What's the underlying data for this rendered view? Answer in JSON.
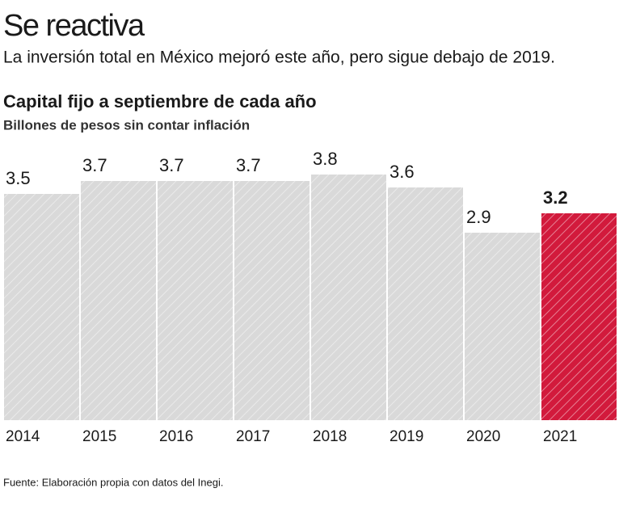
{
  "chart_data": {
    "type": "bar",
    "title": "Se reactiva",
    "subtitle": "La inversión total en México mejoró este año, pero sigue debajo de 2019.",
    "chart_title": "Capital fijo a septiembre de cada año",
    "ylabel": "Billones de pesos sin contar inflación",
    "categories": [
      "2014",
      "2015",
      "2016",
      "2017",
      "2018",
      "2019",
      "2020",
      "2021"
    ],
    "values": [
      3.5,
      3.7,
      3.7,
      3.7,
      3.8,
      3.6,
      2.9,
      3.2
    ],
    "colors": [
      "#d9d9d9",
      "#d9d9d9",
      "#d9d9d9",
      "#d9d9d9",
      "#d9d9d9",
      "#d9d9d9",
      "#d9d9d9",
      "#d21a3c"
    ],
    "bold_labels": [
      false,
      false,
      false,
      false,
      false,
      false,
      false,
      true
    ],
    "source": "Fuente: Elaboración propia con datos del Inegi."
  }
}
